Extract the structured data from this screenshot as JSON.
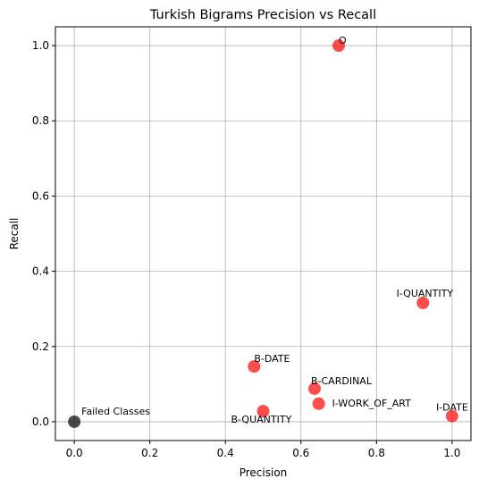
{
  "chart_data": {
    "type": "scatter",
    "title": "Turkish Bigrams Precision vs Recall",
    "xlabel": "Precision",
    "ylabel": "Recall",
    "xlim": [
      -0.05,
      1.05
    ],
    "ylim": [
      -0.05,
      1.05
    ],
    "grid": true,
    "xticks": [
      "0.0",
      "0.2",
      "0.4",
      "0.6",
      "0.8",
      "1.0"
    ],
    "yticks": [
      "0.0",
      "0.2",
      "0.4",
      "0.6",
      "0.8",
      "1.0"
    ],
    "colors": {
      "class_point": "#ff0000",
      "failed_point": "#000000"
    },
    "points": [
      {
        "label": "O",
        "x": 0.7,
        "y": 1.0,
        "kind": "class"
      },
      {
        "label": "I-QUANTITY",
        "x": 0.923,
        "y": 0.316,
        "kind": "class"
      },
      {
        "label": "B-DATE",
        "x": 0.476,
        "y": 0.147,
        "kind": "class"
      },
      {
        "label": "B-CARDINAL",
        "x": 0.636,
        "y": 0.088,
        "kind": "class"
      },
      {
        "label": "I-WORK_OF_ART",
        "x": 0.647,
        "y": 0.048,
        "kind": "class"
      },
      {
        "label": "B-QUANTITY",
        "x": 0.5,
        "y": 0.028,
        "kind": "class"
      },
      {
        "label": "I-DATE",
        "x": 1.0,
        "y": 0.015,
        "kind": "class"
      },
      {
        "label": "Failed Classes",
        "x": 0.0,
        "y": 0.0,
        "kind": "failed"
      }
    ]
  }
}
